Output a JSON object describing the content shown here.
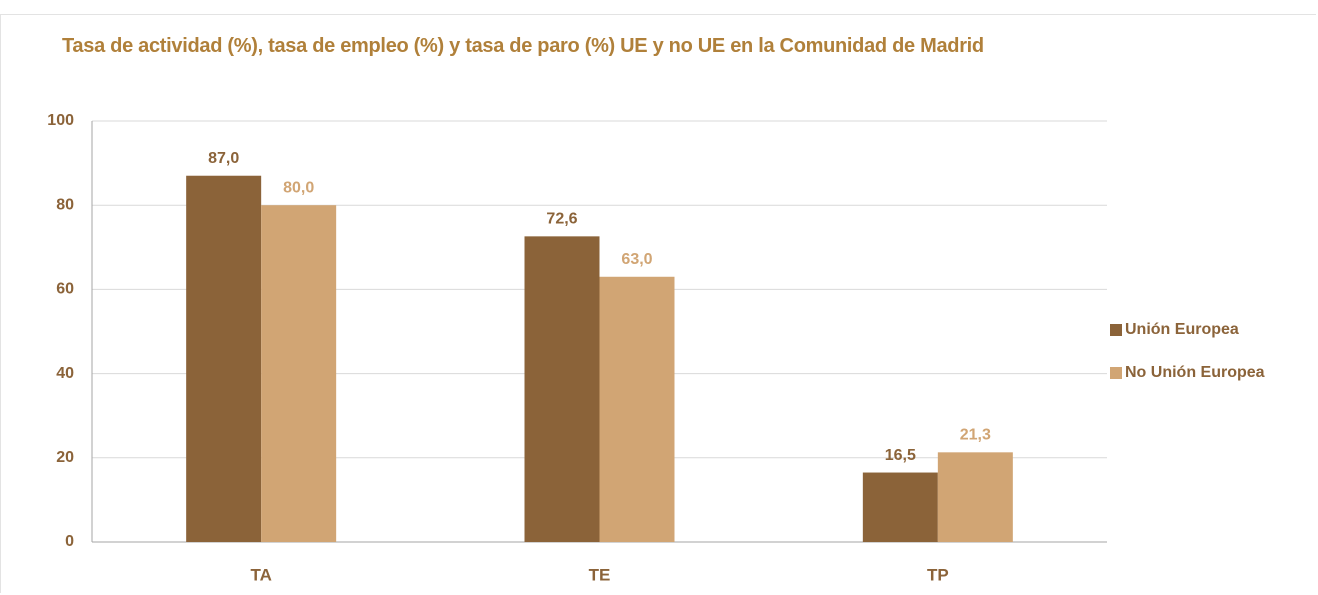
{
  "chart_data": {
    "type": "bar",
    "title": "Tasa de actividad (%), tasa de empleo (%) y tasa de paro (%) UE y no UE  en la Comunidad de Madrid",
    "categories": [
      "TA",
      "TE",
      "TP"
    ],
    "series": [
      {
        "name": "Unión Europea",
        "color": "#8b6339",
        "values": [
          87.0,
          72.6,
          16.5
        ],
        "value_labels": [
          "87,0",
          "72,6",
          "16,5"
        ]
      },
      {
        "name": "No Unión Europea",
        "color": "#d1a574",
        "values": [
          80.0,
          63.0,
          21.3
        ],
        "value_labels": [
          "80,0",
          "63,0",
          "21,3"
        ]
      }
    ],
    "ylim": [
      0,
      100
    ],
    "yticks": [
      0,
      20,
      40,
      60,
      80,
      100
    ],
    "grid": true,
    "legend": "right"
  }
}
